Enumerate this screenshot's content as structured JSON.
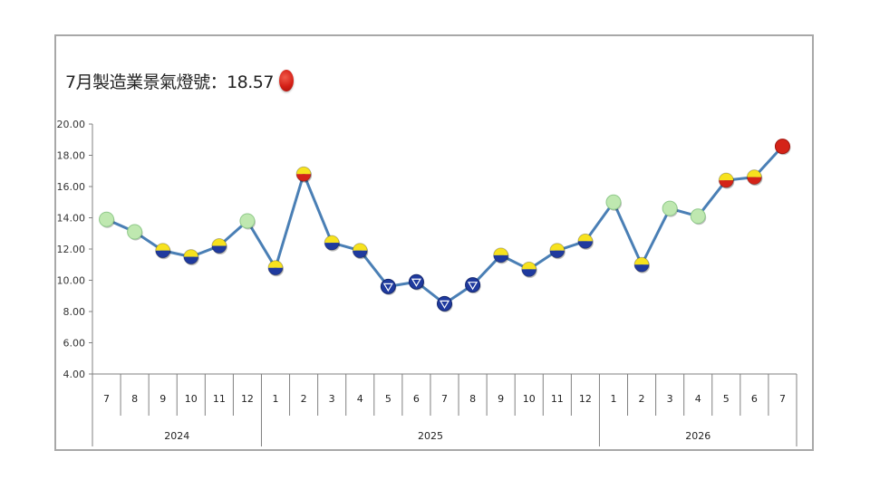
{
  "title": {
    "text": "7月製造業景氣燈號：18.57",
    "signal_color": "red"
  },
  "chart_data": {
    "type": "line",
    "ylim": [
      4,
      20
    ],
    "yticks": [
      "20.00",
      "18.00",
      "16.00",
      "14.00",
      "12.00",
      "10.00",
      "8.00",
      "6.00",
      "4.00"
    ],
    "ytick_values": [
      20,
      18,
      16,
      14,
      12,
      10,
      8,
      6,
      4
    ],
    "years": [
      {
        "label": "2024",
        "months": [
          "7",
          "8",
          "9",
          "10",
          "11",
          "12"
        ]
      },
      {
        "label": "2025",
        "months": [
          "1",
          "2",
          "3",
          "4",
          "5",
          "6",
          "7",
          "8",
          "9",
          "10",
          "11",
          "12"
        ]
      },
      {
        "label": "2026",
        "months": [
          "1",
          "2",
          "3",
          "4",
          "5",
          "6",
          "7"
        ]
      }
    ],
    "values": [
      13.9,
      13.1,
      11.9,
      11.5,
      12.2,
      13.8,
      10.8,
      16.8,
      12.4,
      11.9,
      9.6,
      9.9,
      8.5,
      9.7,
      11.6,
      10.7,
      11.9,
      12.5,
      15.0,
      11.0,
      14.6,
      14.1,
      16.4,
      16.6,
      18.57
    ],
    "signals": [
      "green",
      "green",
      "yellow-blue",
      "yellow-blue",
      "yellow-blue",
      "green",
      "yellow-blue",
      "yellow-red",
      "yellow-blue",
      "yellow-blue",
      "blue",
      "blue",
      "blue",
      "blue",
      "yellow-blue",
      "yellow-blue",
      "yellow-blue",
      "yellow-blue",
      "green",
      "yellow-blue",
      "green",
      "green",
      "yellow-red",
      "yellow-red",
      "red"
    ],
    "grid": false,
    "colors": {
      "line": "#4a7fb5",
      "green": "#bfe8b0",
      "yellow": "#f7e21e",
      "blue": "#1f3a9e",
      "red": "#d42318",
      "axis": "#808080"
    }
  }
}
